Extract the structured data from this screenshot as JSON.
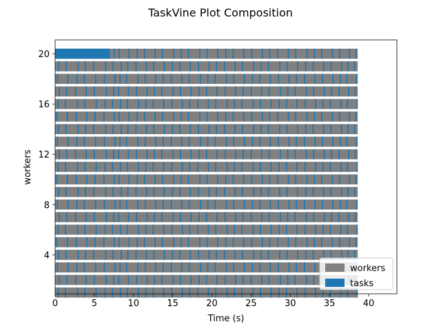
{
  "chart_data": {
    "type": "bar",
    "orientation": "horizontal",
    "title": "TaskVine Plot Composition",
    "xlabel": "Time (s)",
    "ylabel": "workers",
    "xlim": [
      0,
      43.6
    ],
    "ylim": [
      0.9,
      21.1
    ],
    "x_ticks": [
      0,
      5,
      10,
      15,
      20,
      25,
      30,
      35,
      40
    ],
    "y_ticks": [
      4,
      8,
      12,
      16,
      20
    ],
    "grid": false,
    "legend_placement": "lower-right",
    "legend": [
      {
        "label": "workers",
        "color": "#808080"
      },
      {
        "label": "tasks",
        "color": "#1f77b4"
      }
    ],
    "workers": {
      "ids": [
        1,
        2,
        3,
        4,
        5,
        6,
        7,
        8,
        9,
        10,
        11,
        12,
        13,
        14,
        15,
        16,
        17,
        18,
        19,
        20
      ],
      "start": 0.0,
      "end": 38.6
    },
    "tasks": {
      "long_task": {
        "worker": 20,
        "start": 0.0,
        "end": 7.0
      },
      "task_duration": 0.15,
      "task_times": [
        0.3,
        1.4,
        2.7,
        3.8,
        5.0,
        6.3,
        7.4,
        8.2,
        9.2,
        10.4,
        11.5,
        12.6,
        13.7,
        14.9,
        16.0,
        17.1,
        18.3,
        19.4,
        20.5,
        21.7,
        22.8,
        23.9,
        25.1,
        26.2,
        27.3,
        28.5,
        29.6,
        30.7,
        31.9,
        33.0,
        34.1,
        35.2,
        36.3,
        37.3,
        38.3
      ]
    }
  }
}
